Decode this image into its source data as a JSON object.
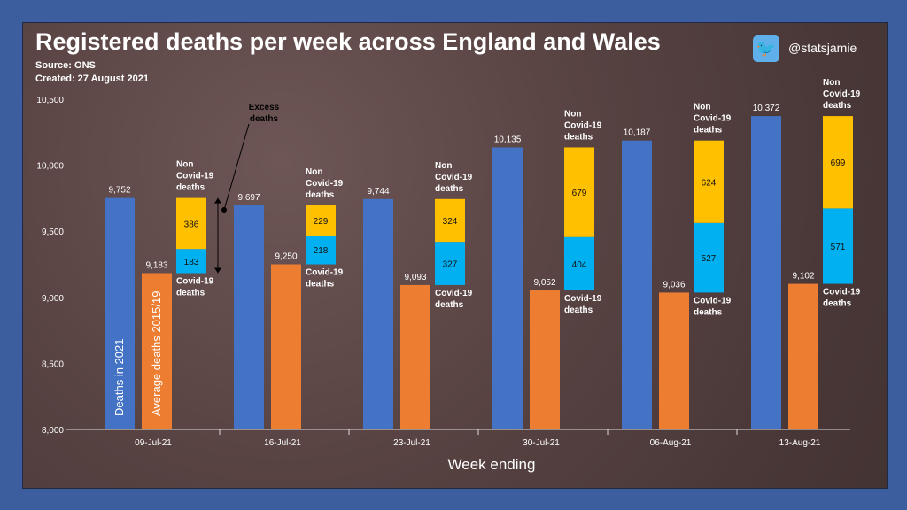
{
  "header": {
    "title": "Registered deaths per week across England and Wales",
    "source": "Source: ONS",
    "created": "Created: 27 August 2021",
    "twitter_handle": "@statsjamie",
    "twitter_icon": "twitter-bird-icon"
  },
  "chart_data": {
    "type": "bar",
    "title": "Registered deaths per week across England and Wales",
    "xlabel": "Week ending",
    "ylabel": "",
    "ylim": [
      8000,
      10500
    ],
    "yticks": [
      8000,
      8500,
      9000,
      9500,
      10000,
      10500
    ],
    "ytick_labels": [
      "8,000",
      "8,500",
      "9,000",
      "9,500",
      "10,000",
      "10,500"
    ],
    "categories": [
      "09-Jul-21",
      "16-Jul-21",
      "23-Jul-21",
      "30-Jul-21",
      "06-Aug-21",
      "13-Aug-21"
    ],
    "series": [
      {
        "name": "Deaths in 2021",
        "color": "#4472c4",
        "values": [
          9752,
          9697,
          9744,
          10135,
          10187,
          10372
        ],
        "labels": [
          "9,752",
          "9,697",
          "9,744",
          "10,135",
          "10,187",
          "10,372"
        ]
      },
      {
        "name": "Average deaths 2015/19",
        "color": "#ed7d31",
        "values": [
          9183,
          9250,
          9093,
          9052,
          9036,
          9102
        ],
        "labels": [
          "9,183",
          "9,250",
          "9,093",
          "9,052",
          "9,036",
          "9,102"
        ]
      },
      {
        "name": "Covid-19 deaths",
        "color": "#00b0f0",
        "values": [
          183,
          218,
          327,
          404,
          527,
          571
        ],
        "stacked_on": "Average deaths 2015/19"
      },
      {
        "name": "Non Covid-19 deaths",
        "color": "#ffc000",
        "values": [
          386,
          229,
          324,
          679,
          624,
          699
        ],
        "stacked_on": "Covid-19 deaths"
      }
    ],
    "annotations": {
      "excess": "Excess deaths",
      "non_covid": [
        "Non",
        "Covid-19",
        "deaths"
      ],
      "covid": [
        "Covid-19",
        "deaths"
      ]
    },
    "grid": false,
    "legend": "in-bar labels"
  }
}
